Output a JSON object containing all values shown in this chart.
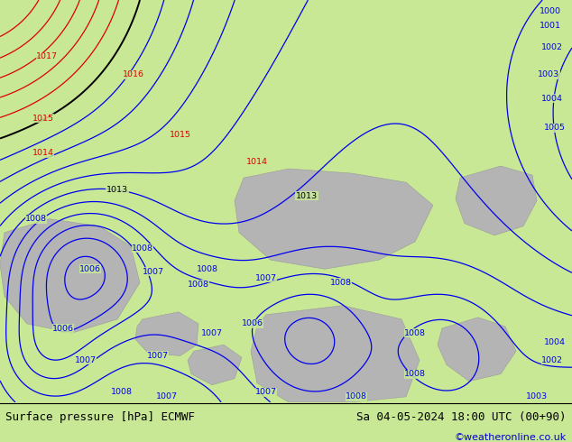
{
  "title_left": "Surface pressure [hPa] ECMWF",
  "title_right": "Sa 04-05-2024 18:00 UTC (00+90)",
  "credit": "©weatheronline.co.uk",
  "bg_color": "#c8e896",
  "water_color": "#b4b4b4",
  "footer_bg": "#ffffff",
  "credit_color": "#0000cc",
  "contour_blue_color": "#0000ee",
  "contour_red_color": "#dd0000",
  "contour_black_color": "#000000",
  "figsize": [
    6.34,
    4.9
  ],
  "dpi": 100,
  "blue_levels": [
    1000,
    1001,
    1002,
    1003,
    1004,
    1005,
    1006,
    1007,
    1008,
    1009,
    1010,
    1011,
    1012
  ],
  "black_levels": [
    1013
  ],
  "red_levels": [
    1014,
    1015,
    1016,
    1017,
    1018
  ]
}
